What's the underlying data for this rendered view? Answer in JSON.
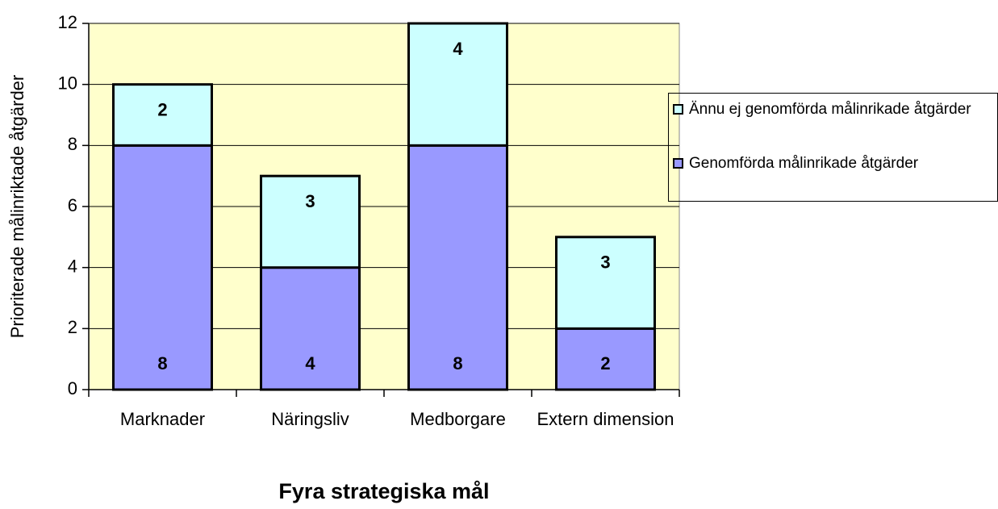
{
  "chart_data": {
    "type": "stacked_bar",
    "x_label": "Fyra strategiska mål",
    "y_label": "Prioriterade målinriktade åtgärder",
    "categories": [
      "Marknader",
      "Näringsliv",
      "Medborgare",
      "Extern dimension"
    ],
    "series": [
      {
        "name": "Genomförda målinrikade åtgärder",
        "color": "#9999ff",
        "values": [
          8,
          4,
          8,
          2
        ]
      },
      {
        "name": "Ännu ej genomförda målinrikade åtgärder",
        "color": "#ccffff",
        "values": [
          2,
          3,
          4,
          3
        ]
      }
    ],
    "ylim": [
      0,
      12
    ],
    "yticks": [
      0,
      2,
      4,
      6,
      8,
      10,
      12
    ],
    "grid": true,
    "legend": "right",
    "plot_background": "#ffffcc"
  }
}
